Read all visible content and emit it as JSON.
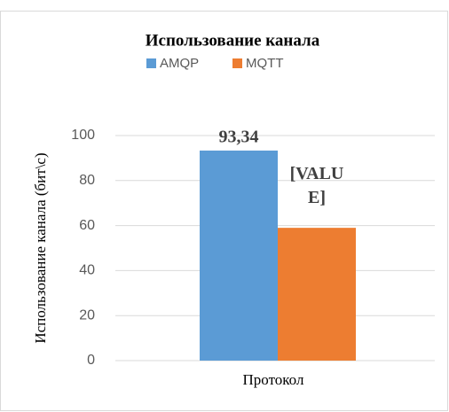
{
  "chart_data": {
    "type": "bar",
    "title": "Использование канала",
    "categories": [
      "Протокол"
    ],
    "series": [
      {
        "name": "AMQP",
        "color": "#5b9bd5",
        "values": [
          93.34
        ],
        "value_labels": [
          "93,34"
        ]
      },
      {
        "name": "MQTT",
        "color": "#ed7d31",
        "values": [
          59
        ],
        "value_labels": [
          "[VALUE]"
        ]
      }
    ],
    "y_label": "Использование канала (бит\\с)",
    "ylim": [
      0,
      100
    ],
    "yticks": [
      0,
      20,
      40,
      60,
      80,
      100
    ],
    "grid": true,
    "legend": "top"
  }
}
